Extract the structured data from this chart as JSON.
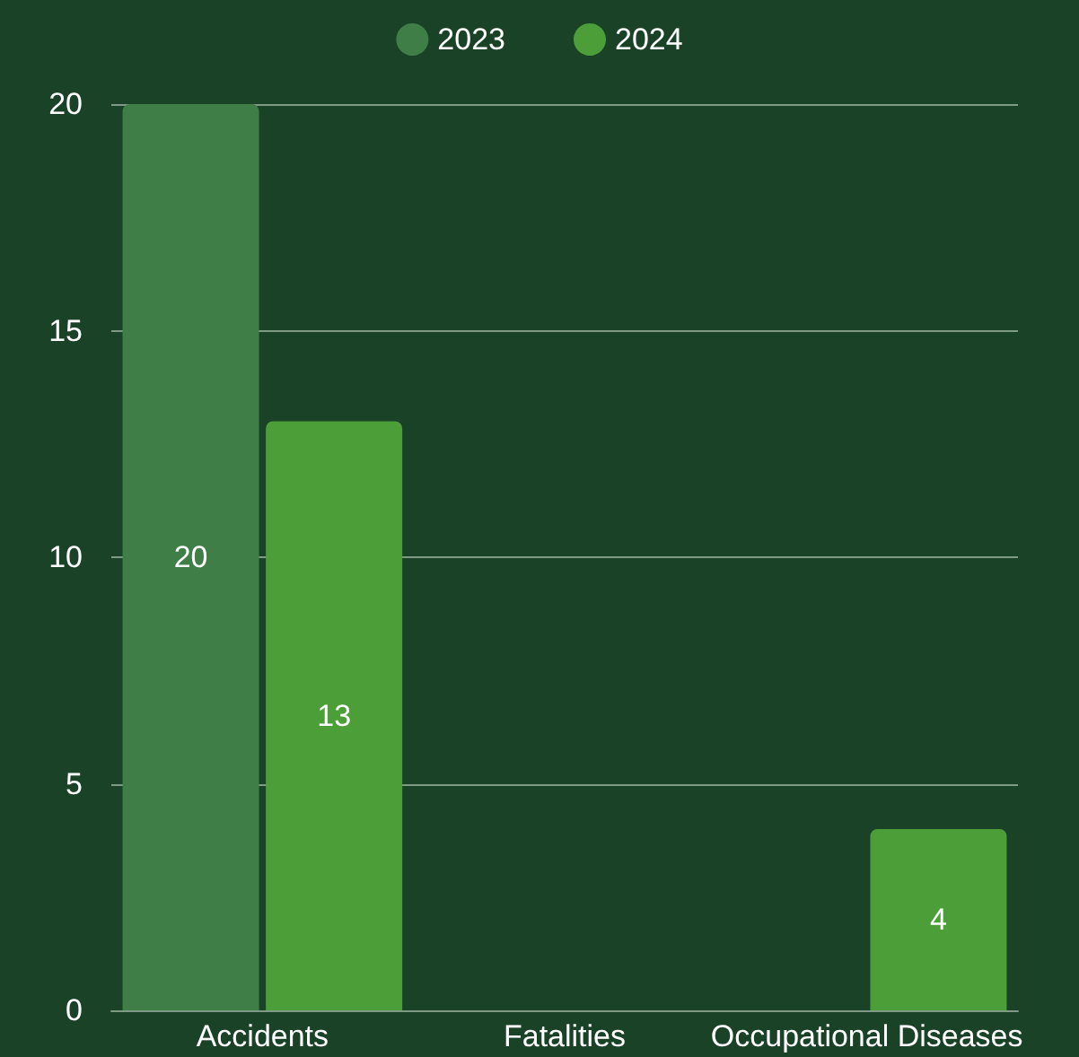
{
  "chart_data": {
    "type": "bar",
    "categories": [
      "Accidents",
      "Fatalities",
      "Occupational Diseases"
    ],
    "series": [
      {
        "name": "2023",
        "color": "#3f7f47",
        "values": [
          20,
          0,
          0
        ],
        "value_labels": [
          "20",
          null,
          null
        ]
      },
      {
        "name": "2024",
        "color": "#4c9e38",
        "values": [
          13,
          0,
          4
        ],
        "value_labels": [
          "13",
          null,
          "4"
        ]
      }
    ],
    "ylim": [
      0,
      20
    ],
    "yticks": [
      0,
      5,
      10,
      15,
      20
    ],
    "grid": "y",
    "legend": "top"
  }
}
